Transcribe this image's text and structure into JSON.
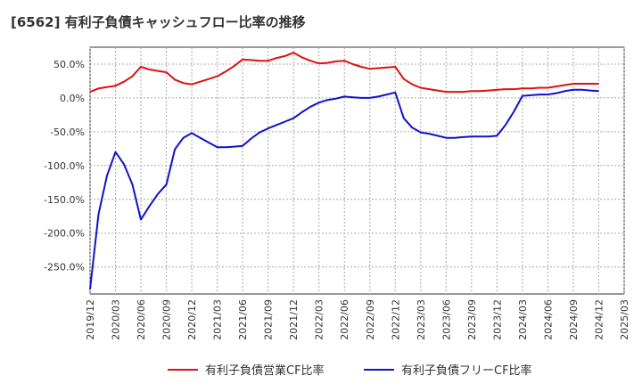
{
  "chart_data": {
    "type": "line",
    "title": "[6562]  有利子負債キャッシュフロー比率の推移",
    "xlabel": "",
    "ylabel": "",
    "ylim": [
      -290,
      75
    ],
    "yticks": [
      50,
      0,
      -50,
      -100,
      -150,
      -200,
      -250
    ],
    "ytick_labels": [
      "50.0%",
      "0.0%",
      "-50.0%",
      "-100.0%",
      "-150.0%",
      "-200.0%",
      "-250.0%"
    ],
    "grid": true,
    "legend_position": "bottom",
    "x_start": "2019-12",
    "x_end": "2025-03",
    "x": [
      "2019-12",
      "2020-01",
      "2020-02",
      "2020-03",
      "2020-04",
      "2020-05",
      "2020-06",
      "2020-07",
      "2020-08",
      "2020-09",
      "2020-10",
      "2020-11",
      "2020-12",
      "2021-01",
      "2021-02",
      "2021-03",
      "2021-04",
      "2021-05",
      "2021-06",
      "2021-07",
      "2021-08",
      "2021-09",
      "2021-10",
      "2021-11",
      "2021-12",
      "2022-01",
      "2022-02",
      "2022-03",
      "2022-04",
      "2022-05",
      "2022-06",
      "2022-07",
      "2022-08",
      "2022-09",
      "2022-10",
      "2022-11",
      "2022-12",
      "2023-01",
      "2023-02",
      "2023-03",
      "2023-04",
      "2023-05",
      "2023-06",
      "2023-07",
      "2023-08",
      "2023-09",
      "2023-10",
      "2023-11",
      "2023-12",
      "2024-01",
      "2024-02",
      "2024-03",
      "2024-04",
      "2024-05",
      "2024-06",
      "2024-07",
      "2024-08",
      "2024-09",
      "2024-10",
      "2024-11",
      "2024-12"
    ],
    "xtick_labels": [
      "2019/12",
      "2020/03",
      "2020/06",
      "2020/09",
      "2020/12",
      "2021/03",
      "2021/06",
      "2021/09",
      "2021/12",
      "2022/03",
      "2022/06",
      "2022/09",
      "2022/12",
      "2023/03",
      "2023/06",
      "2023/09",
      "2023/12",
      "2024/03",
      "2024/06",
      "2024/09",
      "2024/12",
      "2025/03"
    ],
    "series": [
      {
        "name": "有利子負債営業CF比率",
        "color": "#dd1111",
        "values": [
          9,
          14,
          16,
          18,
          24,
          32,
          46,
          42,
          40,
          38,
          27,
          22,
          20,
          24,
          28,
          32,
          39,
          47,
          57,
          56,
          55,
          55,
          59,
          62,
          67,
          60,
          55,
          51,
          52,
          54,
          55,
          50,
          46,
          43,
          44,
          45,
          46,
          28,
          20,
          15,
          13,
          11,
          9,
          9,
          9,
          10,
          10,
          11,
          12,
          13,
          13,
          14,
          14,
          15,
          15,
          17,
          19,
          21,
          21,
          21,
          21
        ]
      },
      {
        "name": "有利子負債フリーCF比率",
        "color": "#1111cc",
        "values": [
          -283,
          -172,
          -115,
          -80,
          -98,
          -128,
          -180,
          -160,
          -142,
          -128,
          -76,
          -59,
          -52,
          -59,
          -66,
          -73,
          -73,
          -72,
          -71,
          -60,
          -51,
          -45,
          -40,
          -35,
          -30,
          -21,
          -13,
          -7,
          -3,
          -1,
          2,
          1,
          0,
          0,
          2,
          5,
          8,
          -30,
          -44,
          -51,
          -53,
          -56,
          -59,
          -59,
          -58,
          -57,
          -57,
          -57,
          -56,
          -40,
          -20,
          3,
          4,
          5,
          5,
          7,
          10,
          12,
          12,
          11,
          10
        ]
      }
    ]
  }
}
